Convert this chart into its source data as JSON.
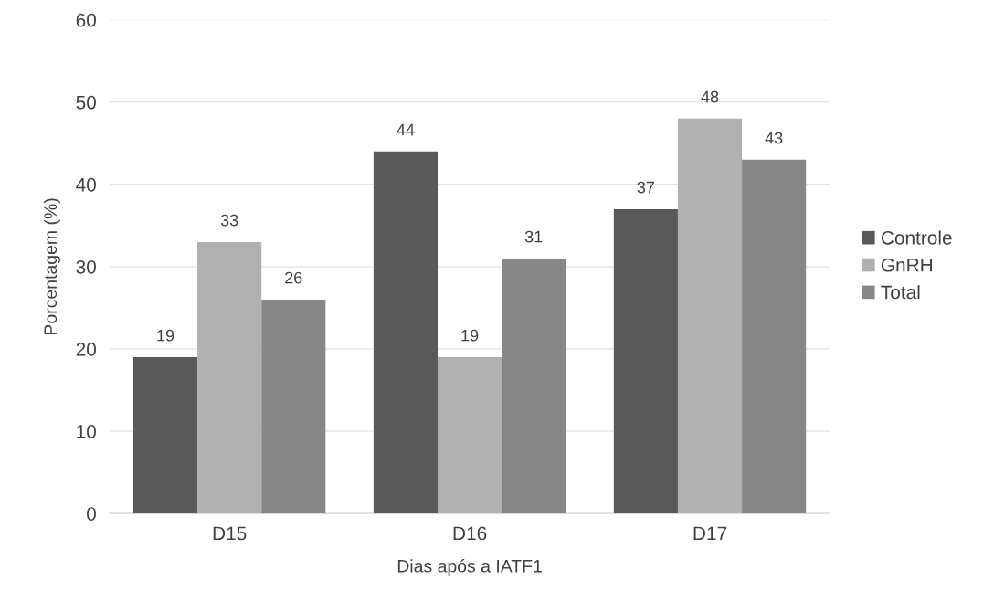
{
  "chart_data": {
    "type": "bar",
    "xlabel": "Dias após a IATF1",
    "ylabel": "Porcentagem (%)",
    "categories": [
      "D15",
      "D16",
      "D17"
    ],
    "series": [
      {
        "name": "Controle",
        "color": "#595959",
        "values": [
          19,
          44,
          37
        ]
      },
      {
        "name": "GnRH",
        "color": "#b0b0b0",
        "values": [
          33,
          19,
          48
        ]
      },
      {
        "name": "Total",
        "color": "#878787",
        "values": [
          26,
          31,
          43
        ]
      }
    ],
    "ylim": [
      0,
      60
    ],
    "yticks": [
      0,
      10,
      20,
      30,
      40,
      50,
      60
    ],
    "grid": "y",
    "legend": "right",
    "data_labels": true
  }
}
